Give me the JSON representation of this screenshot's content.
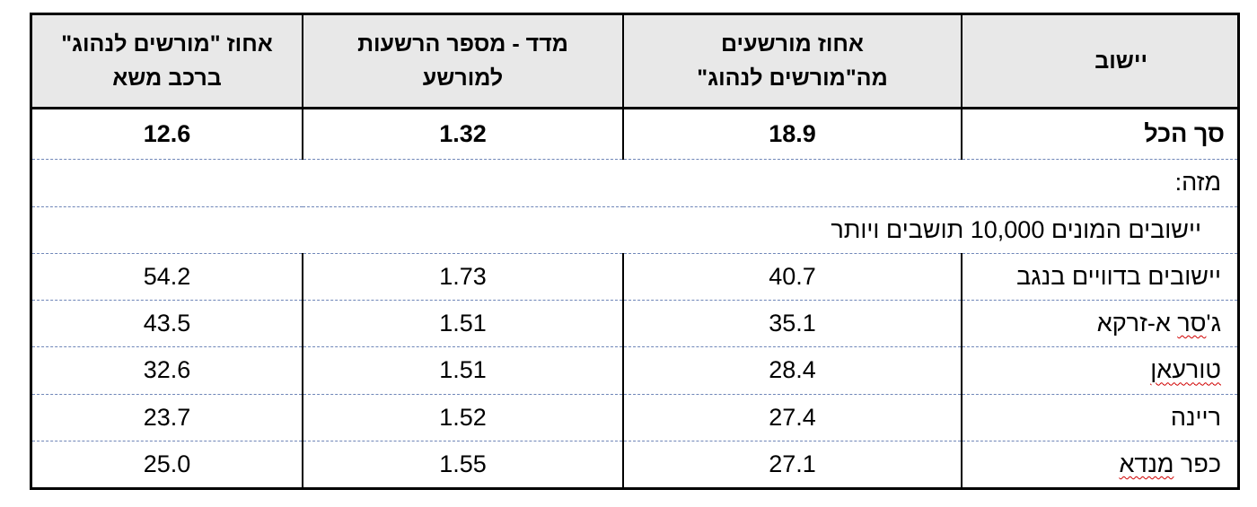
{
  "table": {
    "headers": [
      "יישוב",
      "אחוז מורשעים\nמה\"מורשים לנהוג\"",
      "מדד - מספר הרשעות\nלמורשע",
      "אחוז \"מורשים לנהוג\"\nברכב משא"
    ],
    "total_row": {
      "name": "סך הכל",
      "pct_convicted": "18.9",
      "conviction_index": "1.32",
      "pct_truck": "12.6"
    },
    "of_which_label": "מזה:",
    "group_label": "יישובים המונים 10,000 תושבים ויותר",
    "rows": [
      {
        "name": "יישובים בדוויים בנגב",
        "pct_convicted": "40.7",
        "conviction_index": "1.73",
        "pct_truck": "54.2"
      },
      {
        "name_parts": [
          "ג'",
          "סר",
          " א-זרקא"
        ],
        "pct_convicted": "35.1",
        "conviction_index": "1.51",
        "pct_truck": "43.5"
      },
      {
        "name": "טורעאן",
        "pct_convicted": "28.4",
        "conviction_index": "1.51",
        "pct_truck": "32.6"
      },
      {
        "name": "ריינה",
        "pct_convicted": "27.4",
        "conviction_index": "1.52",
        "pct_truck": "23.7"
      },
      {
        "name_parts": [
          "כפר ",
          "מנדא"
        ],
        "pct_convicted": "27.1",
        "conviction_index": "1.55",
        "pct_truck": "25.0"
      }
    ]
  }
}
